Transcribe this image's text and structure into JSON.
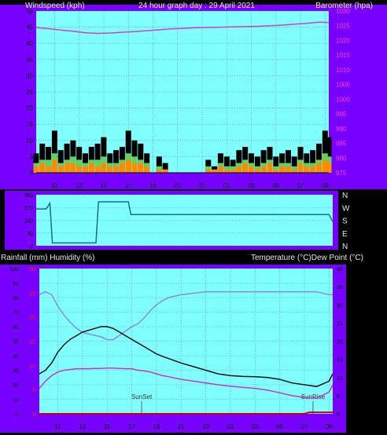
{
  "header": {
    "left": "Windspeed (kph)",
    "center": "24 hour graph day : 29 April 2021",
    "right": "Barometer (hpa)"
  },
  "header2": {
    "left": "Rainfall (mm)  Humidity (%)",
    "right": "Temperature (°C)Dew Point (°C)"
  },
  "colors": {
    "background": "#000000",
    "panel": "#7700ff",
    "plot": "#80ffff",
    "grid": "#5a8a8a",
    "barometer": "#d63ad6",
    "wind_gust": "#000000",
    "wind_avg": "#5fd35f",
    "wind_speed": "#ff8c00",
    "direction": "#1e6b8a",
    "temperature": "#111111",
    "dew_point": "#cc33cc",
    "humidity": "#8a8ae6",
    "rainfall": "#cc0000",
    "pink_axis": "#ff40ff",
    "red_axis": "#ff2020"
  },
  "chart_data": [
    {
      "type": "line",
      "name": "wind-barometer",
      "x_tick_labels": [
        "11",
        "13",
        "15",
        "17",
        "19",
        "21",
        "23",
        "01",
        "03",
        "05",
        "07",
        "09"
      ],
      "x_range": [
        9.5,
        33.3
      ],
      "y_left_ticks": [
        "0",
        "5",
        "10",
        "15",
        "20",
        "25",
        "30",
        "35",
        "40",
        "45",
        "50"
      ],
      "ylim_left": [
        0,
        50
      ],
      "y_right_ticks": [
        "975",
        "980",
        "985",
        "990",
        "995",
        "1000",
        "1005",
        "1010",
        "1015",
        "1020",
        "1025",
        "1030"
      ],
      "ylim_right": [
        975,
        1030
      ],
      "grid": true,
      "series": [
        {
          "key": "barometer",
          "axis": "right",
          "style": "line",
          "x": [
            9.5,
            10.5,
            11.5,
            12.5,
            13.5,
            14.5,
            15.5,
            16.5,
            17.5,
            18.5,
            19.5,
            20.5,
            21.5,
            22.5,
            23.5,
            24.5,
            25.5,
            26.5,
            27.5,
            28.5,
            29.5,
            30.5,
            31.5,
            32.5,
            33.3
          ],
          "y": [
            1024.4,
            1024.0,
            1023.5,
            1023.1,
            1022.6,
            1022.4,
            1022.5,
            1022.8,
            1023.0,
            1023.3,
            1023.6,
            1023.9,
            1024.1,
            1024.3,
            1024.4,
            1024.5,
            1024.6,
            1024.7,
            1024.8,
            1025.0,
            1025.2,
            1025.5,
            1025.8,
            1026.2,
            1026.1
          ]
        },
        {
          "key": "wind_gust",
          "axis": "left",
          "style": "bars",
          "x": [
            9.5,
            10.0,
            10.5,
            11.0,
            11.5,
            12.0,
            12.5,
            13.0,
            13.5,
            14.0,
            14.5,
            15.0,
            15.5,
            16.0,
            16.5,
            17.0,
            17.5,
            18.0,
            18.5,
            19.0,
            19.5,
            20.0,
            20.5,
            21.0,
            21.5,
            22.0,
            22.5,
            23.0,
            23.5,
            24.0,
            24.5,
            25.0,
            25.5,
            26.0,
            26.5,
            27.0,
            27.5,
            28.0,
            28.5,
            29.0,
            29.5,
            30.0,
            30.5,
            31.0,
            31.5,
            32.0,
            32.5,
            33.0,
            33.3
          ],
          "y": [
            6,
            9,
            8,
            13,
            7,
            9,
            10,
            8,
            6,
            8,
            9,
            11,
            6,
            7,
            8,
            13,
            10,
            9,
            6,
            0,
            5,
            3,
            0,
            0,
            0,
            0,
            0,
            0,
            4,
            2,
            6,
            5,
            4,
            7,
            8,
            6,
            5,
            7,
            8,
            5,
            6,
            7,
            5,
            8,
            6,
            7,
            9,
            13,
            11
          ]
        },
        {
          "key": "wind_avg",
          "axis": "left",
          "style": "bars",
          "x": [
            9.5,
            10.0,
            10.5,
            11.0,
            11.5,
            12.0,
            12.5,
            13.0,
            13.5,
            14.0,
            14.5,
            15.0,
            15.5,
            16.0,
            16.5,
            17.0,
            17.5,
            18.0,
            18.5,
            19.0,
            19.5,
            20.0,
            20.5,
            21.0,
            21.5,
            22.0,
            22.5,
            23.0,
            23.5,
            24.0,
            24.5,
            25.0,
            25.5,
            26.0,
            26.5,
            27.0,
            27.5,
            28.0,
            28.5,
            29.0,
            29.5,
            30.0,
            30.5,
            31.0,
            31.5,
            32.0,
            32.5,
            33.0,
            33.3
          ],
          "y": [
            3,
            4,
            4,
            6,
            3,
            4,
            5,
            4,
            3,
            4,
            4,
            5,
            3,
            3,
            4,
            6,
            5,
            4,
            3,
            0,
            2,
            1,
            0,
            0,
            0,
            0,
            0,
            0,
            2,
            1,
            3,
            2,
            2,
            3,
            4,
            3,
            2,
            3,
            4,
            2,
            3,
            3,
            2,
            4,
            3,
            3,
            4,
            6,
            5
          ]
        },
        {
          "key": "wind_speed",
          "axis": "left",
          "style": "bars",
          "x": [
            9.5,
            10.0,
            10.5,
            11.0,
            11.5,
            12.0,
            12.5,
            13.0,
            13.5,
            14.0,
            14.5,
            15.0,
            15.5,
            16.0,
            16.5,
            17.0,
            17.5,
            18.0,
            18.5,
            19.0,
            19.5,
            20.0,
            20.5,
            21.0,
            21.5,
            22.0,
            22.5,
            23.0,
            23.5,
            24.0,
            24.5,
            25.0,
            25.5,
            26.0,
            26.5,
            27.0,
            27.5,
            28.0,
            28.5,
            29.0,
            29.5,
            30.0,
            30.5,
            31.0,
            31.5,
            32.0,
            32.5,
            33.0,
            33.3
          ],
          "y": [
            2,
            3,
            2,
            4,
            2,
            3,
            3,
            2,
            2,
            3,
            2,
            3,
            2,
            2,
            3,
            4,
            3,
            3,
            2,
            0,
            1,
            1,
            0,
            0,
            0,
            0,
            0,
            0,
            1,
            1,
            2,
            1,
            1,
            2,
            3,
            2,
            1,
            2,
            3,
            1,
            2,
            2,
            1,
            3,
            2,
            2,
            3,
            4,
            3
          ]
        }
      ]
    },
    {
      "type": "line",
      "name": "wind-direction",
      "x_range": [
        9.5,
        33.3
      ],
      "y_tick_labels": [
        "360",
        "270",
        "180",
        "90",
        "0"
      ],
      "ylim": [
        0,
        360
      ],
      "direction_labels": [
        "N",
        "W",
        "S",
        "E",
        "N"
      ],
      "series": [
        {
          "key": "direction",
          "style": "step",
          "x": [
            9.5,
            10.3,
            10.6,
            10.8,
            14.3,
            14.5,
            16.9,
            17.1,
            33.0,
            33.3
          ],
          "y": [
            260,
            260,
            300,
            20,
            20,
            310,
            310,
            220,
            220,
            170
          ]
        }
      ]
    },
    {
      "type": "line",
      "name": "temperature-humidity",
      "x_tick_labels": [
        "11",
        "13",
        "15",
        "17",
        "19",
        "21",
        "23",
        "01",
        "03",
        "05",
        "07",
        "09"
      ],
      "x_range": [
        9.5,
        33.3
      ],
      "y_left_ticks": [
        "0",
        "10",
        "20",
        "30",
        "40",
        "50",
        "60",
        "70",
        "80",
        "90",
        "100"
      ],
      "ylim_left": [
        0,
        100
      ],
      "y_red_ticks": [
        "0",
        "5",
        "10",
        "15",
        "20",
        "25",
        "30"
      ],
      "ylim_red": [
        0,
        30
      ],
      "y_right_ticks": [
        "0",
        "5",
        "10",
        "15",
        "20",
        "25",
        "30",
        "35",
        "40"
      ],
      "ylim_right": [
        0,
        40
      ],
      "grid": true,
      "annotations": [
        {
          "label": "SunSet",
          "x": 17.8
        },
        {
          "label": "SunRise",
          "x": 31.7
        }
      ],
      "series": [
        {
          "key": "humidity",
          "axis": "left",
          "x": [
            9.5,
            10.0,
            10.5,
            11.0,
            11.5,
            12.0,
            12.5,
            13.0,
            13.5,
            14.0,
            14.5,
            15.0,
            15.5,
            16.0,
            16.5,
            17.0,
            17.5,
            18.0,
            18.5,
            19.0,
            19.5,
            20.0,
            21.0,
            22.0,
            23.0,
            24.0,
            25.0,
            26.0,
            27.0,
            28.0,
            29.0,
            30.0,
            31.0,
            32.0,
            33.0,
            33.3
          ],
          "y": [
            82,
            84,
            82,
            74,
            68,
            63,
            59,
            56,
            55,
            54,
            53,
            51,
            51,
            54,
            57,
            60,
            62,
            66,
            71,
            75,
            78,
            80,
            82,
            83,
            84,
            84,
            84,
            84,
            84,
            84,
            84,
            84,
            84,
            84,
            82,
            82
          ]
        },
        {
          "key": "temperature",
          "axis": "right",
          "x": [
            9.5,
            10.0,
            10.5,
            11.0,
            11.5,
            12.0,
            12.5,
            13.0,
            13.5,
            14.0,
            14.5,
            15.0,
            15.5,
            16.0,
            16.5,
            17.0,
            17.5,
            18.0,
            18.5,
            19.0,
            19.5,
            20.0,
            21.0,
            22.0,
            23.0,
            24.0,
            25.0,
            26.0,
            27.0,
            28.0,
            29.0,
            30.0,
            31.0,
            32.0,
            33.0,
            33.3
          ],
          "y": [
            11,
            12,
            14,
            17,
            19,
            20.5,
            21.5,
            22.5,
            23,
            23.5,
            24,
            24,
            23.5,
            22.5,
            21.5,
            20.5,
            19.5,
            18.5,
            17.5,
            16.5,
            15.8,
            15.2,
            14,
            13,
            12,
            11,
            10.5,
            10.3,
            10.2,
            10,
            9.5,
            8.5,
            8,
            7.5,
            9,
            11
          ]
        },
        {
          "key": "dew_point",
          "axis": "right",
          "x": [
            9.5,
            10.0,
            10.5,
            11.0,
            11.5,
            12.0,
            12.5,
            13.0,
            13.5,
            14.0,
            14.5,
            15.0,
            15.5,
            16.0,
            16.5,
            17.0,
            17.5,
            18.0,
            18.5,
            19.0,
            19.5,
            20.0,
            21.0,
            22.0,
            23.0,
            24.0,
            25.0,
            26.0,
            27.0,
            28.0,
            29.0,
            30.0,
            31.0,
            32.0,
            33.0,
            33.3
          ],
          "y": [
            7,
            9,
            10.5,
            11.5,
            12,
            12.2,
            12.4,
            12.4,
            12.4,
            12.5,
            12.5,
            12.6,
            12.6,
            12.5,
            12.4,
            12.4,
            12,
            11.8,
            11.5,
            11,
            10.5,
            10.2,
            9.5,
            9,
            8.5,
            8,
            7.6,
            7.3,
            7,
            6.5,
            5.8,
            5,
            4.5,
            4.3,
            6,
            8
          ]
        },
        {
          "key": "rainfall",
          "axis": "red",
          "x": [
            9.5,
            31.0,
            31.4,
            33.3
          ],
          "y": [
            0,
            0,
            0.3,
            0.3
          ]
        }
      ]
    }
  ]
}
